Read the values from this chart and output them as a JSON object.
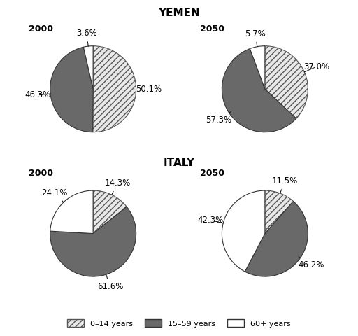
{
  "title_yemen": "YEMEN",
  "title_italy": "ITALY",
  "charts": [
    {
      "label": "2000",
      "country": "Yemen",
      "values": [
        50.1,
        46.3,
        3.6
      ],
      "pct_labels": [
        "50.1%",
        "46.3%",
        "3.6%"
      ],
      "start_angle": 90,
      "label_radii": [
        1.28,
        1.28,
        1.28
      ]
    },
    {
      "label": "2050",
      "country": "Yemen",
      "values": [
        37.0,
        57.3,
        5.7
      ],
      "pct_labels": [
        "37.0%",
        "57.3%",
        "5.7%"
      ],
      "start_angle": 90,
      "label_radii": [
        1.28,
        1.28,
        1.28
      ]
    },
    {
      "label": "2000",
      "country": "Italy",
      "values": [
        14.3,
        61.6,
        24.1
      ],
      "pct_labels": [
        "14.3%",
        "61.6%",
        "24.1%"
      ],
      "start_angle": 90,
      "label_radii": [
        1.28,
        1.28,
        1.28
      ]
    },
    {
      "label": "2050",
      "country": "Italy",
      "values": [
        11.5,
        46.2,
        42.3
      ],
      "pct_labels": [
        "11.5%",
        "46.2%",
        "42.3%"
      ],
      "start_angle": 90,
      "label_radii": [
        1.28,
        1.28,
        1.28
      ]
    }
  ],
  "legend_labels": [
    "0–14 years",
    "15–59 years",
    "60+ years"
  ],
  "wedge_colors": [
    "#d8d8d8",
    "#696969",
    "#ffffff"
  ],
  "hatch_patterns": [
    "////",
    "",
    ""
  ],
  "edgecolor": "#333333",
  "hatch_edgecolor": "#555555",
  "background_color": "#ffffff",
  "pct_fontsize": 8.5,
  "title_fontsize": 11,
  "year_fontsize": 9,
  "legend_fontsize": 8
}
